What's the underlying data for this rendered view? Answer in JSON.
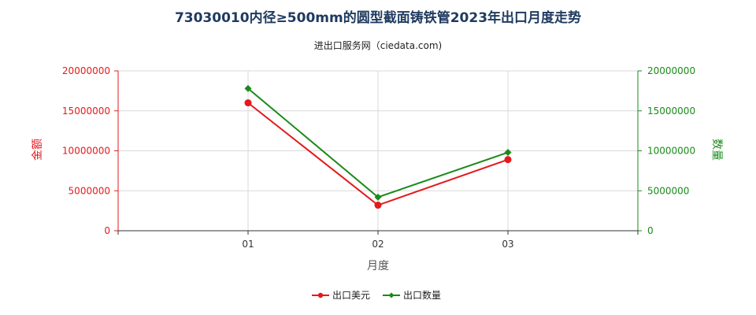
{
  "chart_data": {
    "type": "line",
    "title": "73030010内径≥500mm的圆型截面铸铁管2023年出口月度走势",
    "subtitle": "进出口服务网（ciedata.com)",
    "categories": [
      "01",
      "02",
      "03"
    ],
    "xlabel": "月度",
    "ylabel_left": "金额",
    "ylabel_right": "数量",
    "ylim_left": [
      0,
      20000000
    ],
    "ylim_right": [
      0,
      20000000
    ],
    "yticks_left": [
      "0",
      "5000000",
      "10000000",
      "15000000",
      "20000000"
    ],
    "yticks_right": [
      "0",
      "5000000",
      "10000000",
      "15000000",
      "20000000"
    ],
    "grid": true,
    "legend_position": "bottom",
    "series": [
      {
        "name": "出口美元",
        "axis": "left",
        "color": "#e31a1c",
        "marker": "circle",
        "values": [
          16000000,
          3200000,
          8900000
        ]
      },
      {
        "name": "出口数量",
        "axis": "right",
        "color": "#1a8a1a",
        "marker": "diamond",
        "values": [
          17800000,
          4200000,
          9800000
        ]
      }
    ],
    "left_axis_color": "#e31a1c",
    "right_axis_color": "#1a8a1a"
  }
}
